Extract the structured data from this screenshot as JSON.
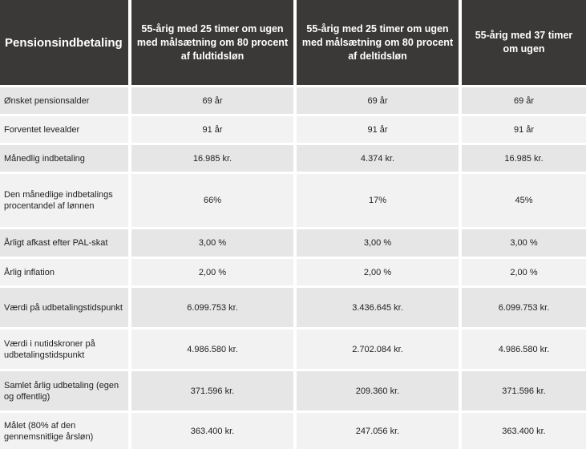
{
  "header": {
    "label": "Pensionsindbetaling",
    "col1": "55-årig med 25 timer om ugen med målsætning om 80 procent af fuldtidsløn",
    "col2": "55-årig med 25 timer om ugen med målsætning om 80 procent af deltidsløn",
    "col3": "55-årig med 37 timer om ugen"
  },
  "rows": [
    {
      "label": "Ønsket pensionsalder",
      "v1": "69 år",
      "v2": "69 år",
      "v3": "69 år"
    },
    {
      "label": "Forventet levealder",
      "v1": "91 år",
      "v2": "91 år",
      "v3": "91 år"
    },
    {
      "label": "Månedlig indbetaling",
      "v1": "16.985 kr.",
      "v2": "4.374 kr.",
      "v3": "16.985 kr."
    },
    {
      "label": "Den månedlige indbetalings procentandel af lønnen",
      "v1": "66%",
      "v2": "17%",
      "v3": "45%"
    },
    {
      "label": "Årligt afkast efter PAL-skat",
      "v1": "3,00 %",
      "v2": "3,00 %",
      "v3": "3,00 %"
    },
    {
      "label": "Årlig inflation",
      "v1": "2,00 %",
      "v2": "2,00 %",
      "v3": "2,00 %"
    },
    {
      "label": "Værdi på udbetalingstidspunkt",
      "v1": "6.099.753 kr.",
      "v2": "3.436.645 kr.",
      "v3": "6.099.753 kr."
    },
    {
      "label": "Værdi i nutidskroner på udbetalingstidspunkt",
      "v1": "4.986.580 kr.",
      "v2": "2.702.084 kr.",
      "v3": "4.986.580 kr."
    },
    {
      "label": "Samlet årlig udbetaling (egen og offentlig)",
      "v1": "371.596 kr.",
      "v2": "209.360 kr.",
      "v3": "371.596 kr."
    },
    {
      "label": "Målet (80% af den gennemsnitlige årsløn)",
      "v1": "363.400 kr.",
      "v2": "247.056 kr.",
      "v3": "363.400 kr."
    }
  ]
}
